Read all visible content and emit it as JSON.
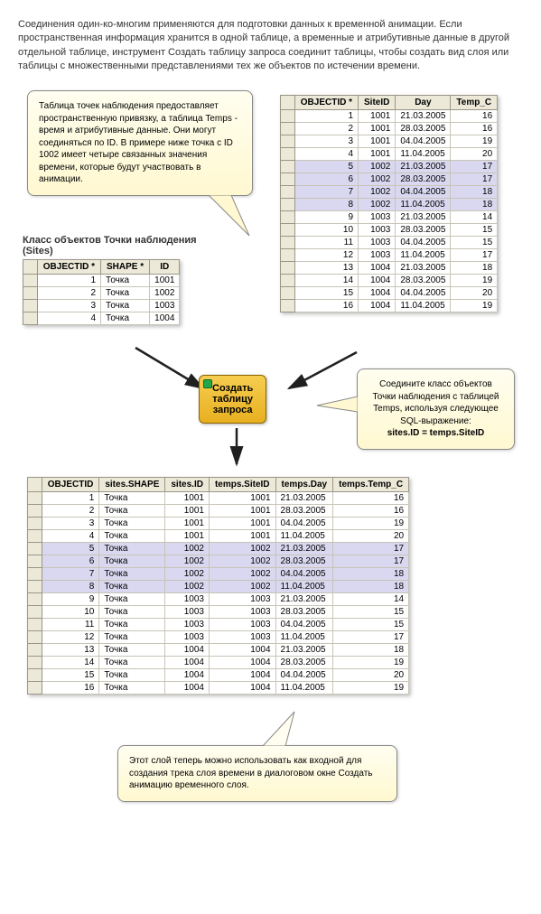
{
  "intro": "Соединения один-ко-многим применяются для подготовки данных к временной анимации. Если пространственная информация хранится в одной таблице, а временные и атрибутивные данные в другой отдельной таблице, инструмент Создать таблицу запроса соединит таблицы, чтобы создать вид слоя или таблицы с множественными представлениями тех же объектов по истечении времени.",
  "callout1": "Таблица точек наблюдения предоставляет пространственную привязку, а таблица Temps - время и атрибутивные данные. Они могут соединяться по ID. В примере ниже точка с ID 1002 имеет четыре связанных значения времени, которые будут участвовать в анимации.",
  "sites_title": "Класс объектов Точки наблюдения (Sites)",
  "sites_table": {
    "columns": [
      "OBJECTID *",
      "SHAPE *",
      "ID"
    ],
    "rows": [
      [
        "1",
        "Точка",
        "1001"
      ],
      [
        "2",
        "Точка",
        "1002"
      ],
      [
        "3",
        "Точка",
        "1003"
      ],
      [
        "4",
        "Точка",
        "1004"
      ]
    ]
  },
  "temps_table": {
    "columns": [
      "OBJECTID *",
      "SiteID",
      "Day",
      "Temp_C"
    ],
    "rows": [
      [
        "1",
        "1001",
        "21.03.2005",
        "16"
      ],
      [
        "2",
        "1001",
        "28.03.2005",
        "16"
      ],
      [
        "3",
        "1001",
        "04.04.2005",
        "19"
      ],
      [
        "4",
        "1001",
        "11.04.2005",
        "20"
      ],
      [
        "5",
        "1002",
        "21.03.2005",
        "17"
      ],
      [
        "6",
        "1002",
        "28.03.2005",
        "17"
      ],
      [
        "7",
        "1002",
        "04.04.2005",
        "18"
      ],
      [
        "8",
        "1002",
        "11.04.2005",
        "18"
      ],
      [
        "9",
        "1003",
        "21.03.2005",
        "14"
      ],
      [
        "10",
        "1003",
        "28.03.2005",
        "15"
      ],
      [
        "11",
        "1003",
        "04.04.2005",
        "15"
      ],
      [
        "12",
        "1003",
        "11.04.2005",
        "17"
      ],
      [
        "13",
        "1004",
        "21.03.2005",
        "18"
      ],
      [
        "14",
        "1004",
        "28.03.2005",
        "19"
      ],
      [
        "15",
        "1004",
        "04.04.2005",
        "20"
      ],
      [
        "16",
        "1004",
        "11.04.2005",
        "19"
      ]
    ],
    "highlight_rows": [
      4,
      5,
      6,
      7
    ]
  },
  "node_label_l1": "Создать",
  "node_label_l2": "таблицу",
  "node_label_l3": "запроса",
  "callout2a": "Соедините класс объектов Точки наблюдения с таблицей Temps, используя следующее SQL-выражение:",
  "callout2b": "sites.ID = temps.SiteID",
  "result_table": {
    "columns": [
      "OBJECTID",
      "sites.SHAPE",
      "sites.ID",
      "temps.SiteID",
      "temps.Day",
      "temps.Temp_C"
    ],
    "rows": [
      [
        "1",
        "Точка",
        "1001",
        "1001",
        "21.03.2005",
        "16"
      ],
      [
        "2",
        "Точка",
        "1001",
        "1001",
        "28.03.2005",
        "16"
      ],
      [
        "3",
        "Точка",
        "1001",
        "1001",
        "04.04.2005",
        "19"
      ],
      [
        "4",
        "Точка",
        "1001",
        "1001",
        "11.04.2005",
        "20"
      ],
      [
        "5",
        "Точка",
        "1002",
        "1002",
        "21.03.2005",
        "17"
      ],
      [
        "6",
        "Точка",
        "1002",
        "1002",
        "28.03.2005",
        "17"
      ],
      [
        "7",
        "Точка",
        "1002",
        "1002",
        "04.04.2005",
        "18"
      ],
      [
        "8",
        "Точка",
        "1002",
        "1002",
        "11.04.2005",
        "18"
      ],
      [
        "9",
        "Точка",
        "1003",
        "1003",
        "21.03.2005",
        "14"
      ],
      [
        "10",
        "Точка",
        "1003",
        "1003",
        "28.03.2005",
        "15"
      ],
      [
        "11",
        "Точка",
        "1003",
        "1003",
        "04.04.2005",
        "15"
      ],
      [
        "12",
        "Точка",
        "1003",
        "1003",
        "11.04.2005",
        "17"
      ],
      [
        "13",
        "Точка",
        "1004",
        "1004",
        "21.03.2005",
        "18"
      ],
      [
        "14",
        "Точка",
        "1004",
        "1004",
        "28.03.2005",
        "19"
      ],
      [
        "15",
        "Точка",
        "1004",
        "1004",
        "04.04.2005",
        "20"
      ],
      [
        "16",
        "Точка",
        "1004",
        "1004",
        "11.04.2005",
        "19"
      ]
    ],
    "highlight_rows": [
      4,
      5,
      6,
      7
    ]
  },
  "callout3": "Этот слой теперь можно использовать как входной для создания трека слоя времени в диалоговом окне Создать анимацию временного слоя.",
  "colors": {
    "callout_bg_top": "#fffef0",
    "callout_bg_bot": "#fff8d0",
    "header_bg": "#ece9d8",
    "highlight": "#d9d8f0",
    "node_top": "#f6cd50",
    "node_bot": "#e8b020",
    "arrow": "#202020"
  }
}
